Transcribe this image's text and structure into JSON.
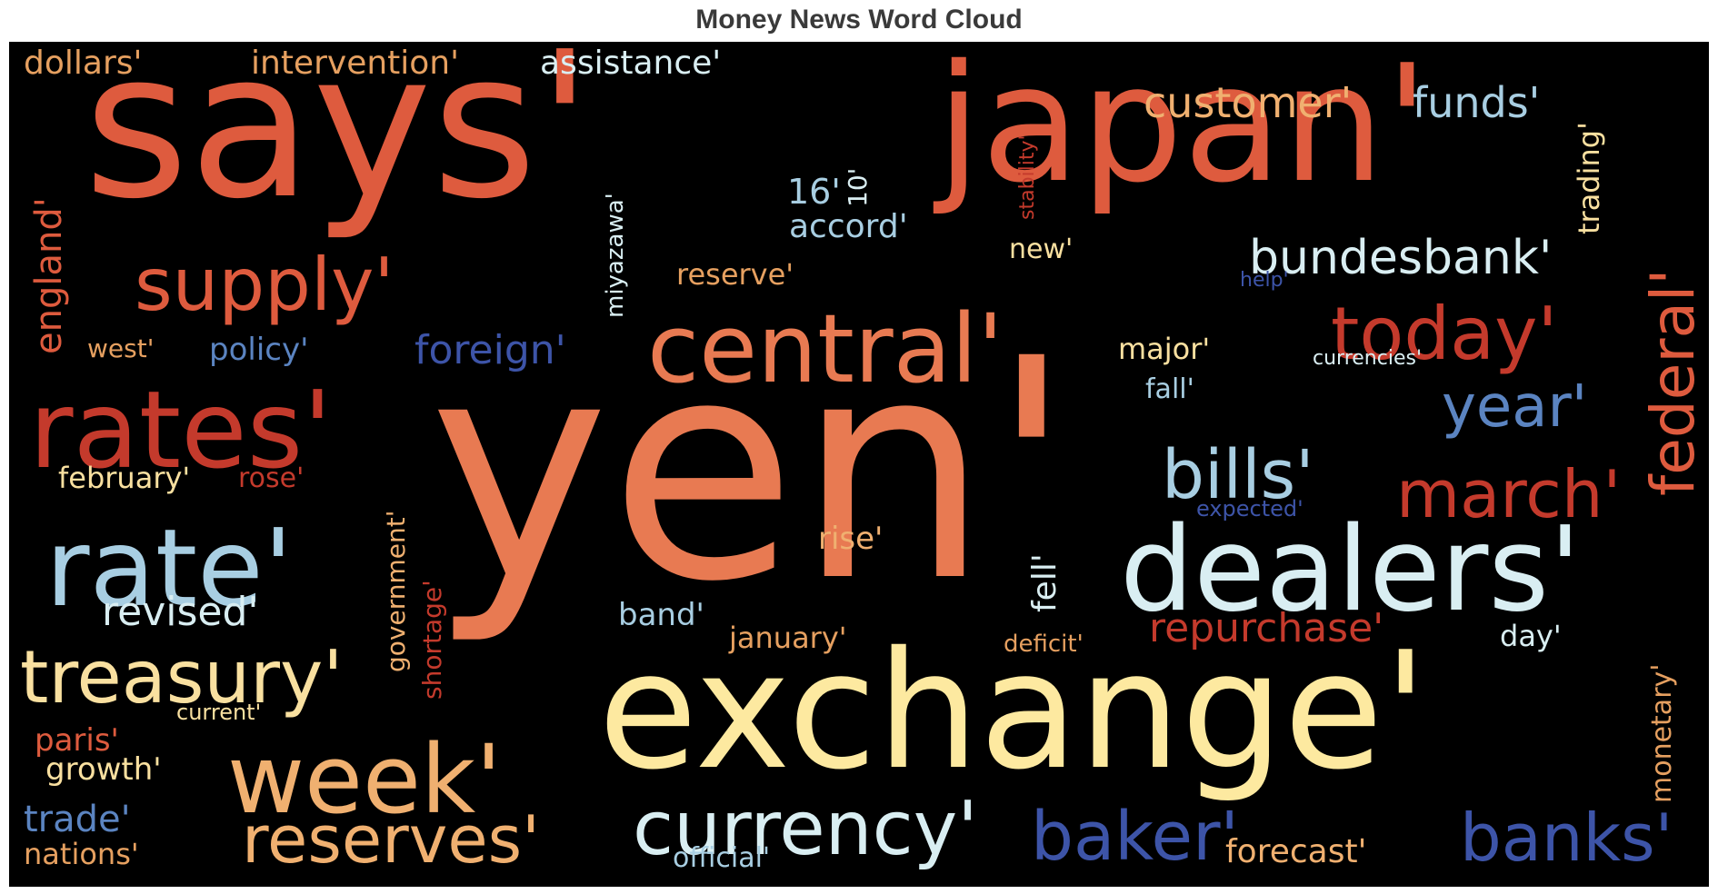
{
  "title": "Money News Word Cloud",
  "colors": {
    "background": "#000000",
    "palette": [
      "#de5b3e",
      "#e87a52",
      "#fde9a0",
      "#f0b070",
      "#d9eef2",
      "#a8cee2",
      "#5b84c1",
      "#3d54a8",
      "#c43a2c"
    ]
  },
  "words": {
    "says": "says'",
    "japan": "japan'",
    "yen": "yen'",
    "exchange": "exchange'",
    "dealers": "dealers'",
    "central": "central'",
    "rates": "rates'",
    "rate": "rate'",
    "week": "week'",
    "currency": "currency'",
    "supply": "supply'",
    "treasury": "treasury'",
    "reserves": "reserves'",
    "federal": "federal'",
    "today": "today'",
    "banks": "banks'",
    "baker": "baker'",
    "march": "march'",
    "bills": "bills'",
    "year": "year'",
    "bundesbank": "bundesbank'",
    "customer": "customer'",
    "funds": "funds'",
    "foreign": "foreign'",
    "england": "england'",
    "repurchase": "repurchase'",
    "revised": "revised'",
    "dollars": "dollars'",
    "intervention": "intervention'",
    "assistance": "assistance'",
    "trading": "trading'",
    "monetary": "monetary'",
    "accord": "accord'",
    "sixteen": "16'",
    "ten": "10'",
    "stability": "stability'",
    "miyazawa": "miyazawa'",
    "new": "new'",
    "reserve": "reserve'",
    "help": "help'",
    "policy": "policy'",
    "west": "west'",
    "major": "major'",
    "currencies": "currencies'",
    "fall": "fall'",
    "february": "february'",
    "rose": "rose'",
    "government": "government'",
    "shortage": "shortage'",
    "expected": "expected'",
    "rise": "rise'",
    "fell": "fell'",
    "band": "band'",
    "january": "january'",
    "deficit": "deficit'",
    "day": "day'",
    "current": "current'",
    "paris": "paris'",
    "growth": "growth'",
    "trade": "trade'",
    "nations": "nations'",
    "official": "official'",
    "forecast": "forecast'"
  }
}
